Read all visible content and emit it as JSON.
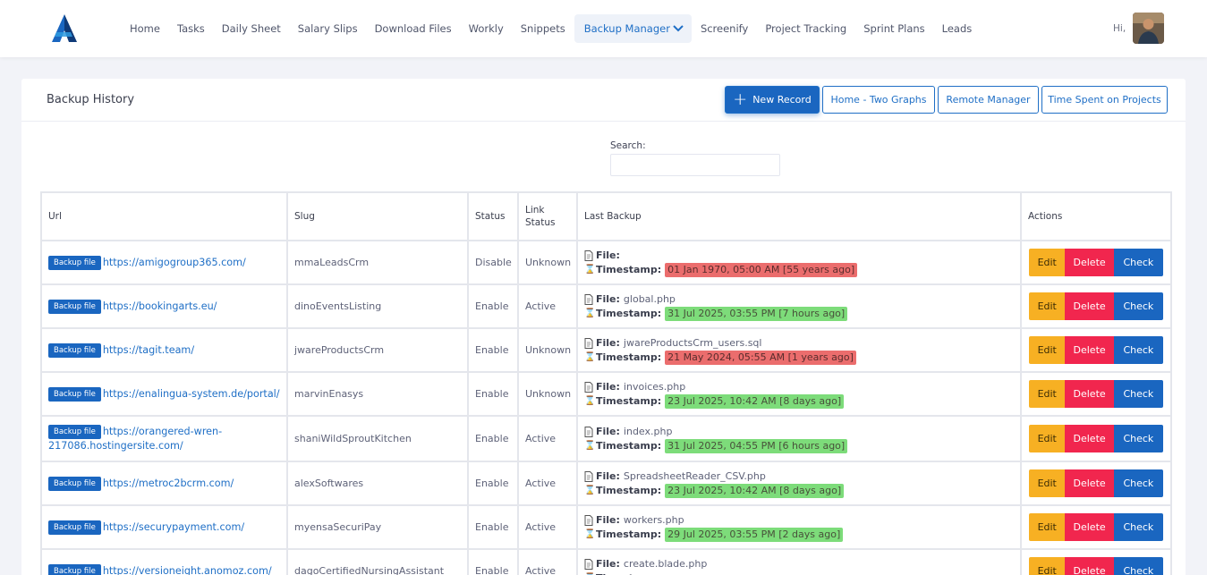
{
  "nav": {
    "items": [
      "Home",
      "Tasks",
      "Daily Sheet",
      "Salary Slips",
      "Download Files",
      "Workly",
      "Snippets",
      "Backup Manager",
      "Screenify",
      "Project Tracking",
      "Sprint Plans",
      "Leads"
    ],
    "active_index": 7,
    "greeting": "Hi,"
  },
  "card": {
    "title": "Backup History",
    "buttons": {
      "new_record": "New Record",
      "home_two_graphs": "Home - Two Graphs",
      "remote_manager": "Remote Manager",
      "time_spent": "Time Spent on Projects"
    }
  },
  "search": {
    "label": "Search:",
    "value": ""
  },
  "table": {
    "headers": [
      "Url",
      "Slug",
      "Status",
      "Link Status",
      "Last Backup",
      "Actions"
    ],
    "file_label": "File:",
    "timestamp_label": "Timestamp:",
    "badge_label": "Backup file",
    "action_labels": {
      "edit": "Edit",
      "delete": "Delete",
      "check": "Check"
    },
    "rows": [
      {
        "url": "https://amigogroup365.com/",
        "slug": "mmaLeadsCrm",
        "status": "Disable",
        "link_status": "Unknown",
        "file": "",
        "timestamp": "01 Jan 1970, 05:00 AM [55 years ago]",
        "ts_color": "red"
      },
      {
        "url": "https://bookingarts.eu/",
        "slug": "dinoEventsListing",
        "status": "Enable",
        "link_status": "Active",
        "file": "global.php",
        "timestamp": "31 Jul 2025, 03:55 PM [7 hours ago]",
        "ts_color": "green"
      },
      {
        "url": "https://tagit.team/",
        "slug": "jwareProductsCrm",
        "status": "Enable",
        "link_status": "Unknown",
        "file": "jwareProductsCrm_users.sql",
        "timestamp": "21 May 2024, 05:55 AM [1 years ago]",
        "ts_color": "red"
      },
      {
        "url": "https://enalingua-system.de/portal/",
        "slug": "marvinEnasys",
        "status": "Enable",
        "link_status": "Unknown",
        "file": "invoices.php",
        "timestamp": "23 Jul 2025, 10:42 AM [8 days ago]",
        "ts_color": "green"
      },
      {
        "url": "https://orangered-wren-217086.hostingersite.com/",
        "slug": "shaniWildSproutKitchen",
        "status": "Enable",
        "link_status": "Active",
        "file": "index.php",
        "timestamp": "31 Jul 2025, 04:55 PM [6 hours ago]",
        "ts_color": "green"
      },
      {
        "url": "https://metroc2bcrm.com/",
        "slug": "alexSoftwares",
        "status": "Enable",
        "link_status": "Active",
        "file": "SpreadsheetReader_CSV.php",
        "timestamp": "23 Jul 2025, 10:42 AM [8 days ago]",
        "ts_color": "green"
      },
      {
        "url": "https://securypayment.com/",
        "slug": "myensaSecuriPay",
        "status": "Enable",
        "link_status": "Active",
        "file": "workers.php",
        "timestamp": "29 Jul 2025, 03:55 PM [2 days ago]",
        "ts_color": "green"
      },
      {
        "url": "https://versioneight.anomoz.com/",
        "slug": "dagoCertifiedNursingAssistant",
        "status": "Enable",
        "link_status": "Active",
        "file": "create.blade.php",
        "timestamp": "",
        "ts_color": "green"
      }
    ]
  },
  "colors": {
    "primary": "#1a66c0",
    "edit": "#f7b023",
    "delete": "#f1264e",
    "ts_green": "#7ddc7a",
    "ts_red": "#eb6d6d"
  }
}
